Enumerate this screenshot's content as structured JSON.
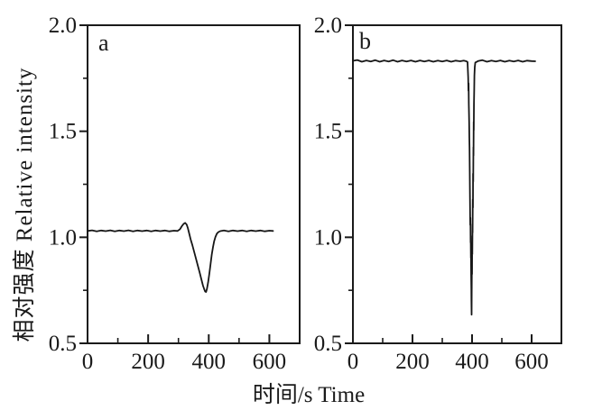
{
  "figure": {
    "background": "#ffffff",
    "axis_color": "#1a1a1a",
    "trace_color": "#161616",
    "xlabel": "时间/s Time",
    "ylabel": "相对强度 Relative intensity"
  },
  "chart_data": [
    {
      "type": "line",
      "panel_label": "a",
      "xlabel": "时间/s Time",
      "ylabel": "相对强度 Relative intensity",
      "xlim": [
        0,
        700
      ],
      "ylim": [
        0.5,
        2.0
      ],
      "grid": false,
      "legend": "none",
      "x_major_ticks": {
        "values": [
          0,
          200,
          400,
          600
        ],
        "labels": [
          "0",
          "200",
          "400",
          "600"
        ]
      },
      "x_minor_ticks": [
        100,
        300,
        500,
        700
      ],
      "y_major_ticks": {
        "values": [
          2.0,
          1.5,
          1.0,
          0.5
        ],
        "labels": [
          "2.0",
          "1.5",
          "1.0",
          "0.5"
        ]
      },
      "y_minor_ticks": [
        1.75,
        1.25,
        0.75
      ],
      "baseline_value": 1.03,
      "dip": {
        "time_s": 390,
        "min_value": 0.74
      },
      "series": [
        {
          "name": "relative intensity (panel a)",
          "points": [
            [
              0,
              1.03
            ],
            [
              15,
              1.033
            ],
            [
              30,
              1.028
            ],
            [
              45,
              1.032
            ],
            [
              60,
              1.029
            ],
            [
              75,
              1.033
            ],
            [
              90,
              1.028
            ],
            [
              105,
              1.032
            ],
            [
              120,
              1.029
            ],
            [
              135,
              1.033
            ],
            [
              150,
              1.028
            ],
            [
              165,
              1.032
            ],
            [
              180,
              1.029
            ],
            [
              195,
              1.032
            ],
            [
              210,
              1.028
            ],
            [
              225,
              1.032
            ],
            [
              240,
              1.029
            ],
            [
              255,
              1.032
            ],
            [
              270,
              1.028
            ],
            [
              285,
              1.031
            ],
            [
              297,
              1.03
            ],
            [
              305,
              1.038
            ],
            [
              311,
              1.052
            ],
            [
              317,
              1.063
            ],
            [
              322,
              1.068
            ],
            [
              327,
              1.06
            ],
            [
              331,
              1.044
            ],
            [
              335,
              1.02
            ],
            [
              340,
              0.992
            ],
            [
              346,
              0.962
            ],
            [
              352,
              0.93
            ],
            [
              358,
              0.898
            ],
            [
              364,
              0.866
            ],
            [
              370,
              0.834
            ],
            [
              376,
              0.8
            ],
            [
              381,
              0.772
            ],
            [
              385,
              0.755
            ],
            [
              388,
              0.744
            ],
            [
              391,
              0.742
            ],
            [
              394,
              0.757
            ],
            [
              398,
              0.788
            ],
            [
              402,
              0.83
            ],
            [
              406,
              0.874
            ],
            [
              410,
              0.918
            ],
            [
              414,
              0.954
            ],
            [
              418,
              0.982
            ],
            [
              422,
              1.002
            ],
            [
              427,
              1.017
            ],
            [
              432,
              1.025
            ],
            [
              438,
              1.029
            ],
            [
              450,
              1.032
            ],
            [
              465,
              1.028
            ],
            [
              480,
              1.032
            ],
            [
              495,
              1.029
            ],
            [
              510,
              1.032
            ],
            [
              525,
              1.028
            ],
            [
              540,
              1.032
            ],
            [
              555,
              1.029
            ],
            [
              570,
              1.032
            ],
            [
              585,
              1.028
            ],
            [
              600,
              1.031
            ],
            [
              612,
              1.03
            ]
          ]
        }
      ]
    },
    {
      "type": "line",
      "panel_label": "b",
      "xlabel": "时间/s Time",
      "ylabel": "相对强度 Relative intensity",
      "xlim": [
        0,
        700
      ],
      "ylim": [
        0.5,
        2.0
      ],
      "grid": false,
      "legend": "none",
      "x_major_ticks": {
        "values": [
          0,
          200,
          400,
          600
        ],
        "labels": [
          "0",
          "200",
          "400",
          "600"
        ]
      },
      "x_minor_ticks": [
        100,
        300,
        500,
        700
      ],
      "y_major_ticks": {
        "values": [
          2.0,
          1.5,
          1.0,
          0.5
        ],
        "labels": [
          "2.0",
          "1.5",
          "1.0",
          "0.5"
        ]
      },
      "y_minor_ticks": [
        1.75,
        1.25,
        0.75
      ],
      "baseline_value": 1.83,
      "dip": {
        "time_s": 396,
        "min_value": 0.63
      },
      "series": [
        {
          "name": "relative intensity (panel b)",
          "points": [
            [
              0,
              1.832
            ],
            [
              15,
              1.836
            ],
            [
              30,
              1.828
            ],
            [
              45,
              1.834
            ],
            [
              60,
              1.829
            ],
            [
              75,
              1.835
            ],
            [
              90,
              1.828
            ],
            [
              105,
              1.834
            ],
            [
              120,
              1.829
            ],
            [
              135,
              1.835
            ],
            [
              150,
              1.828
            ],
            [
              165,
              1.834
            ],
            [
              180,
              1.829
            ],
            [
              195,
              1.834
            ],
            [
              210,
              1.828
            ],
            [
              225,
              1.834
            ],
            [
              240,
              1.829
            ],
            [
              255,
              1.834
            ],
            [
              270,
              1.828
            ],
            [
              285,
              1.833
            ],
            [
              300,
              1.829
            ],
            [
              315,
              1.834
            ],
            [
              330,
              1.828
            ],
            [
              345,
              1.833
            ],
            [
              360,
              1.83
            ],
            [
              372,
              1.833
            ],
            [
              381,
              1.83
            ],
            [
              385,
              1.826
            ],
            [
              387,
              1.755
            ],
            [
              388,
              1.69
            ],
            [
              388.6,
              1.726
            ],
            [
              389.2,
              1.628
            ],
            [
              389.8,
              1.586
            ],
            [
              390.4,
              1.54
            ],
            [
              391,
              1.47
            ],
            [
              391.6,
              1.424
            ],
            [
              392.2,
              1.33
            ],
            [
              392.8,
              1.23
            ],
            [
              393.4,
              1.14
            ],
            [
              394,
              1.058
            ],
            [
              394.5,
              1.092
            ],
            [
              395,
              0.975
            ],
            [
              395.5,
              1.008
            ],
            [
              396,
              0.902
            ],
            [
              396.5,
              0.938
            ],
            [
              397,
              0.82
            ],
            [
              397.5,
              0.76
            ],
            [
              398,
              0.7
            ],
            [
              398.4,
              0.635
            ],
            [
              398.9,
              0.73
            ],
            [
              399.4,
              0.868
            ],
            [
              399.9,
              0.826
            ],
            [
              400.4,
              0.962
            ],
            [
              400.9,
              0.92
            ],
            [
              401.4,
              1.062
            ],
            [
              401.9,
              1.022
            ],
            [
              402.4,
              1.178
            ],
            [
              402.9,
              1.14
            ],
            [
              403.4,
              1.3
            ],
            [
              403.9,
              1.262
            ],
            [
              404.4,
              1.425
            ],
            [
              404.9,
              1.385
            ],
            [
              405.4,
              1.545
            ],
            [
              405.9,
              1.505
            ],
            [
              406.5,
              1.625
            ],
            [
              407.2,
              1.7
            ],
            [
              408,
              1.762
            ],
            [
              409,
              1.802
            ],
            [
              411,
              1.824
            ],
            [
              420,
              1.831
            ],
            [
              435,
              1.835
            ],
            [
              450,
              1.828
            ],
            [
              465,
              1.833
            ],
            [
              480,
              1.829
            ],
            [
              495,
              1.834
            ],
            [
              510,
              1.828
            ],
            [
              525,
              1.833
            ],
            [
              540,
              1.829
            ],
            [
              555,
              1.834
            ],
            [
              570,
              1.828
            ],
            [
              585,
              1.833
            ],
            [
              600,
              1.831
            ],
            [
              612,
              1.83
            ]
          ]
        }
      ]
    }
  ]
}
